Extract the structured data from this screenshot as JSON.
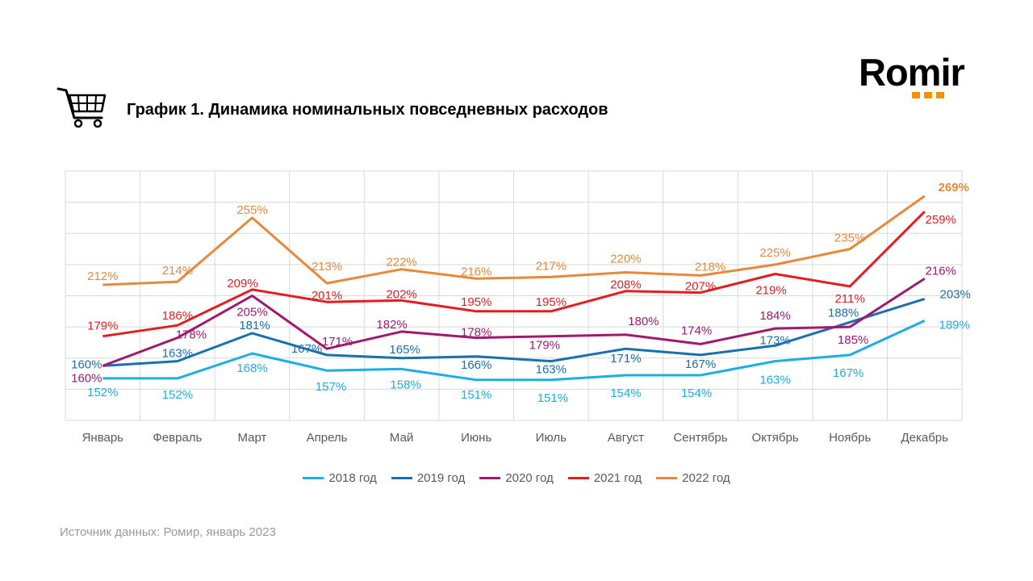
{
  "header": {
    "title": "График 1. Динамика номинальных повседневных расходов"
  },
  "logo": {
    "text": "Romir",
    "accent_color": "#F39200"
  },
  "icons": {
    "cart": "shopping-cart-icon"
  },
  "footer": {
    "source": "Источник данных: Ромир, январь 2023"
  },
  "chart_data": {
    "type": "line",
    "categories": [
      "Январь",
      "Февраль",
      "Март",
      "Апрель",
      "Май",
      "Июнь",
      "Июль",
      "Август",
      "Сентябрь",
      "Октябрь",
      "Ноябрь",
      "Декабрь"
    ],
    "ylim": [
      125,
      285
    ],
    "grid": true,
    "legend_position": "bottom",
    "series": [
      {
        "name": "2018 год",
        "color": "#1CAEE4",
        "values": [
          152,
          152,
          168,
          157,
          158,
          151,
          151,
          154,
          154,
          163,
          167,
          189
        ]
      },
      {
        "name": "2019 год",
        "color": "#1A6FAE",
        "values": [
          160,
          163,
          181,
          167,
          165,
          166,
          163,
          171,
          167,
          173,
          188,
          203
        ]
      },
      {
        "name": "2020 год",
        "color": "#A0196F",
        "values": [
          160,
          178,
          205,
          171,
          182,
          178,
          179,
          180,
          174,
          184,
          185,
          216
        ]
      },
      {
        "name": "2021 год",
        "color": "#E41E20",
        "values": [
          179,
          186,
          209,
          201,
          202,
          195,
          195,
          208,
          207,
          219,
          211,
          259
        ]
      },
      {
        "name": "2022 год",
        "color": "#E8883A",
        "values": [
          212,
          214,
          255,
          213,
          222,
          216,
          217,
          220,
          218,
          225,
          235,
          269
        ]
      }
    ]
  }
}
